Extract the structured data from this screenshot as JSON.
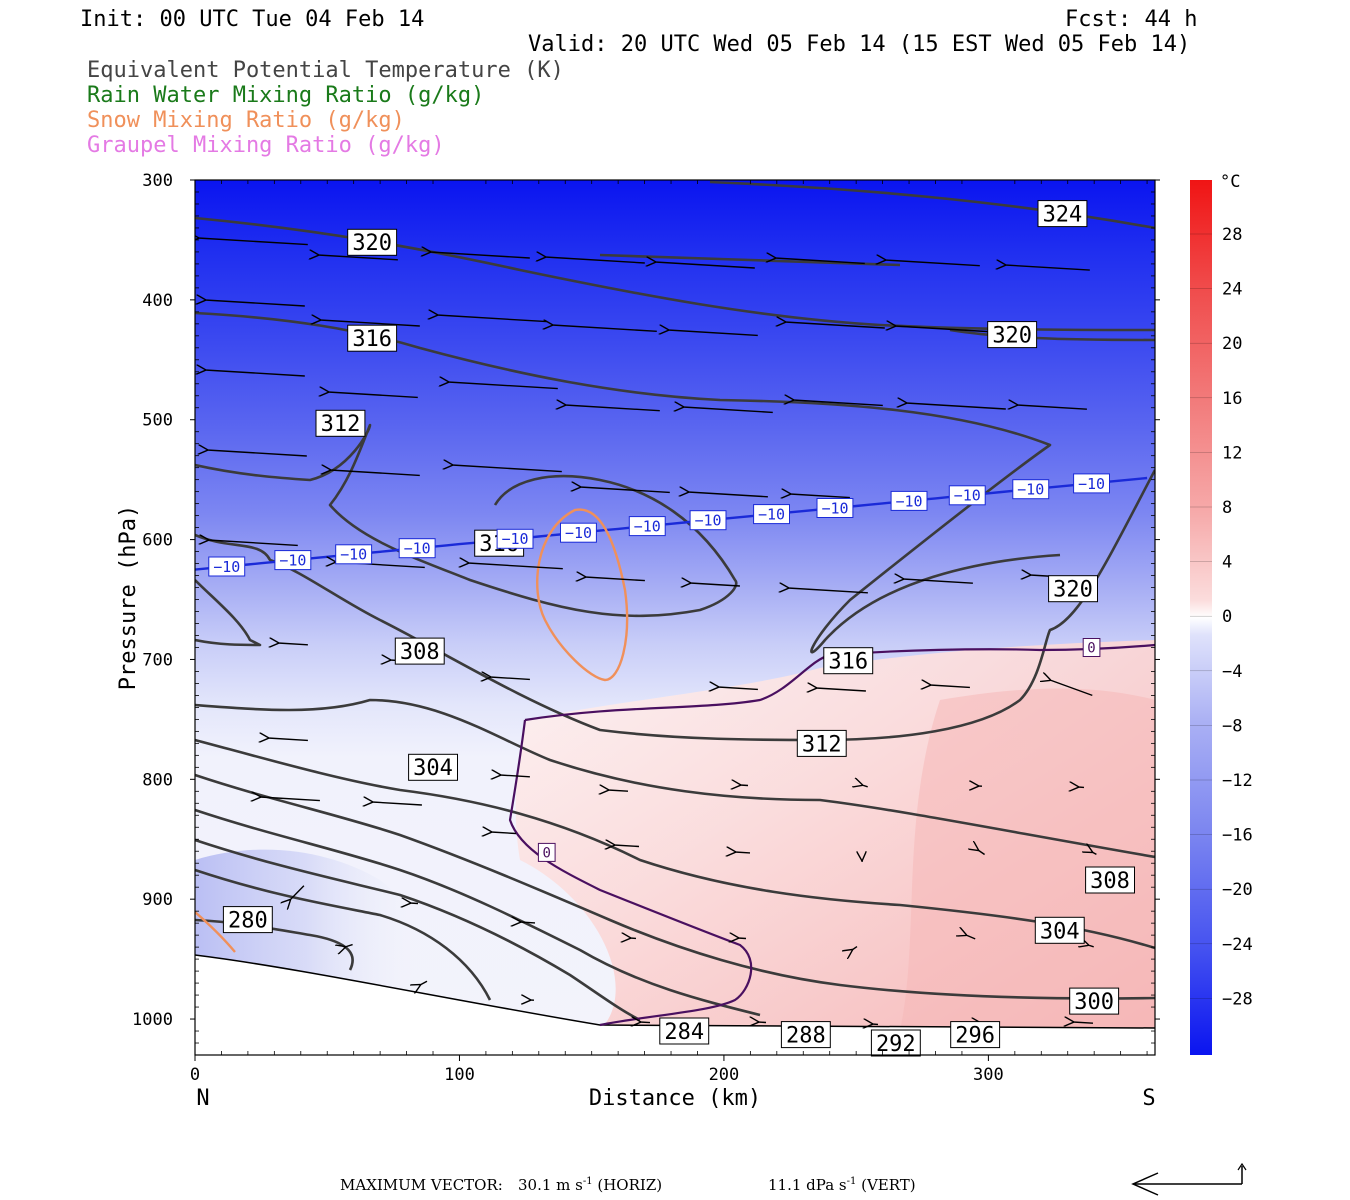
{
  "header": {
    "init": "Init: 00 UTC Tue 04 Feb 14",
    "fcst": "Fcst:  44 h",
    "valid": "Valid: 20 UTC Wed 05 Feb 14 (15 EST Wed 05 Feb 14)"
  },
  "legend": [
    {
      "text": "Equivalent Potential Temperature (K)",
      "color": "#444444"
    },
    {
      "text": "Rain Water Mixing Ratio (g/kg)",
      "color": "#1a7a1a"
    },
    {
      "text": "Snow Mixing Ratio (g/kg)",
      "color": "#f0905a"
    },
    {
      "text": "Graupel Mixing Ratio (g/kg)",
      "color": "#e47ae4"
    }
  ],
  "colorbar": {
    "unit": "°C",
    "labels": [
      "28",
      "24",
      "20",
      "16",
      "12",
      "8",
      "4",
      "0",
      "−4",
      "−8",
      "−12",
      "−16",
      "−20",
      "−24",
      "−28"
    ]
  },
  "footer": {
    "max_label": "MAXIMUM VECTOR:",
    "horiz_value": "30.1 m s",
    "horiz_exp": "-1",
    "horiz_unit": " (HORIZ)",
    "vert_value": "11.1 dPa s",
    "vert_exp": "-1",
    "vert_unit": " (VERT)"
  },
  "chart_data": {
    "type": "cross-section",
    "x_axis": {
      "label": "Distance (km)",
      "range": [
        0,
        363
      ],
      "ticks": [
        0,
        100,
        200,
        300
      ],
      "left_end": "N",
      "right_end": "S"
    },
    "y_axis": {
      "label": "Pressure (hPa)",
      "range": [
        300,
        1030
      ],
      "ticks": [
        300,
        400,
        500,
        600,
        700,
        800,
        900,
        1000
      ]
    },
    "theta_e_contours": [
      {
        "value": 280,
        "label": "280",
        "label_at": [
          20,
          917
        ]
      },
      {
        "value": 284,
        "label": "284",
        "label_at": [
          185,
          1010
        ]
      },
      {
        "value": 288,
        "label": "288",
        "label_at": [
          231,
          1013
        ]
      },
      {
        "value": 292,
        "label": "292",
        "label_at": [
          265,
          1020
        ]
      },
      {
        "value": 296,
        "label": "296",
        "label_at": [
          295,
          1013
        ]
      },
      {
        "value": 300,
        "label": "300",
        "label_at": [
          340,
          985
        ]
      },
      {
        "value": 304,
        "label": "304",
        "label_at": [
          90,
          790
        ],
        "label2_at": [
          327,
          926
        ]
      },
      {
        "value": 308,
        "label": "308",
        "label_at": [
          85,
          693
        ],
        "label2_at": [
          346,
          884
        ]
      },
      {
        "value": 312,
        "label": "312",
        "label_at": [
          55,
          503
        ],
        "label2_at": [
          237,
          770
        ]
      },
      {
        "value": 316,
        "label": "316",
        "label_at": [
          67,
          432
        ],
        "label2_at": [
          115,
          603
        ],
        "label3_at": [
          247,
          701
        ]
      },
      {
        "value": 320,
        "label": "320",
        "label_at": [
          67,
          352
        ],
        "label2_at": [
          309,
          429
        ],
        "label3_at": [
          332,
          641
        ]
      },
      {
        "value": 324,
        "label": "324",
        "label_at": [
          328,
          328
        ]
      }
    ],
    "isotherms": [
      {
        "value": -10,
        "label": "−10",
        "positions_km": [
          12,
          37,
          60,
          84,
          121,
          145,
          171,
          194,
          218,
          242,
          270,
          292,
          316,
          339
        ]
      },
      {
        "value": 0,
        "label": "0",
        "positions": [
          [
            133,
            861
          ],
          [
            339,
            690
          ]
        ]
      }
    ],
    "snow_mixing_ratio_contours": 1,
    "max_vector": {
      "horizontal_m_s": 30.1,
      "vertical_dPa_s": 11.1
    }
  }
}
